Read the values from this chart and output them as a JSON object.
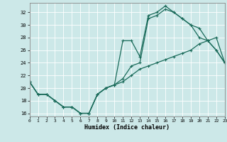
{
  "xlabel": "Humidex (Indice chaleur)",
  "bg_color": "#cce8e8",
  "grid_color": "#ffffff",
  "line_color": "#1a6b5a",
  "line1_x": [
    0,
    1,
    2,
    3,
    4,
    5,
    6,
    7,
    8,
    9,
    10,
    11,
    12,
    13,
    14,
    15,
    16,
    17,
    18,
    19,
    20,
    21,
    22,
    23
  ],
  "line1_y": [
    21,
    19,
    19,
    18,
    17,
    17,
    16,
    16,
    19,
    20,
    20.5,
    27.5,
    27.5,
    25,
    31.5,
    32,
    33,
    32,
    31,
    30,
    29.5,
    27.5,
    26,
    24
  ],
  "line2_x": [
    0,
    1,
    2,
    3,
    4,
    5,
    6,
    7,
    8,
    9,
    10,
    11,
    12,
    13,
    14,
    15,
    16,
    17,
    18,
    19,
    20,
    21,
    22,
    23
  ],
  "line2_y": [
    21,
    19,
    19,
    18,
    17,
    17,
    16,
    16,
    19,
    20,
    20.5,
    21,
    22,
    23,
    23.5,
    24,
    24.5,
    25,
    25.5,
    26,
    27,
    27.5,
    28,
    24
  ],
  "line3_x": [
    0,
    1,
    2,
    3,
    4,
    5,
    6,
    7,
    8,
    9,
    10,
    11,
    12,
    13,
    14,
    15,
    16,
    17,
    18,
    19,
    20,
    21,
    22,
    23
  ],
  "line3_y": [
    21,
    19,
    19,
    18,
    17,
    17,
    16,
    16,
    19,
    20,
    20.5,
    21.5,
    23.5,
    24,
    31,
    31.5,
    32.5,
    32,
    31,
    30,
    28,
    27.5,
    26,
    24
  ],
  "xlim": [
    0,
    23
  ],
  "ylim": [
    15.5,
    33.5
  ],
  "yticks": [
    16,
    18,
    20,
    22,
    24,
    26,
    28,
    30,
    32
  ],
  "xticks": [
    0,
    1,
    2,
    3,
    4,
    5,
    6,
    7,
    8,
    9,
    10,
    11,
    12,
    13,
    14,
    15,
    16,
    17,
    18,
    19,
    20,
    21,
    22,
    23
  ],
  "marker": "+",
  "markersize": 3,
  "linewidth": 0.9
}
